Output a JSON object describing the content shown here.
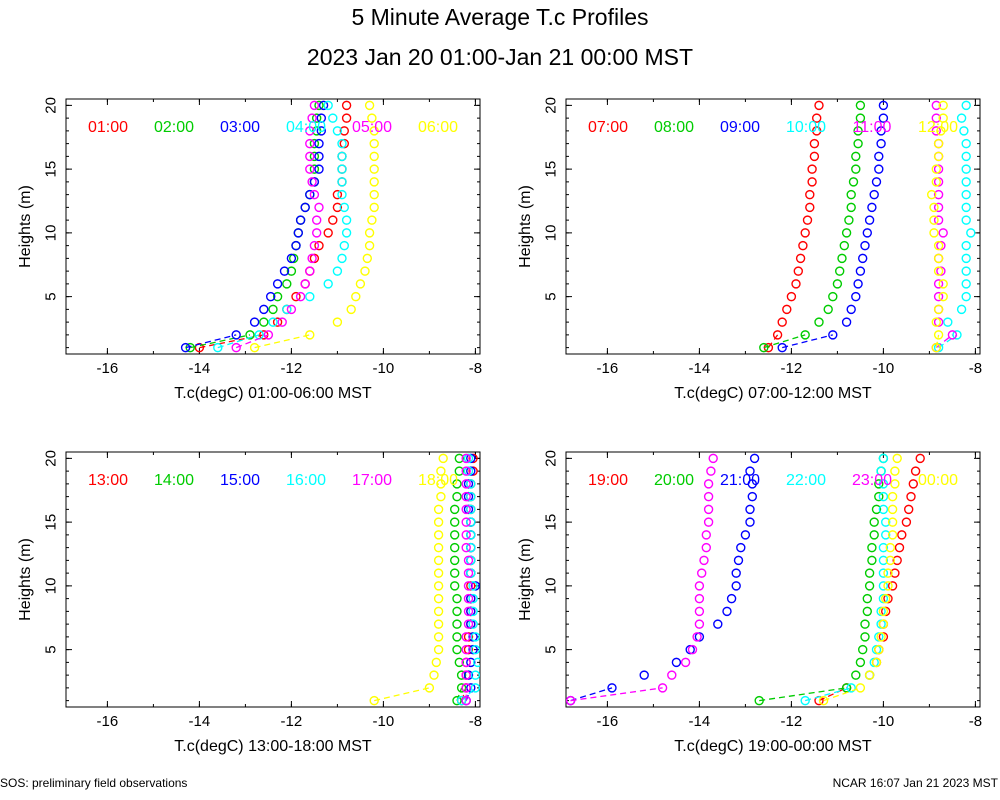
{
  "title": "5 Minute Average T.c Profiles",
  "subtitle": "2023 Jan 20 01:00-Jan 21 00:00 MST",
  "footer_left": "SOS: preliminary field observations",
  "footer_right": "NCAR 16:07 Jan 21 2023 MST",
  "colors": [
    "#ff0000",
    "#00cc00",
    "#0000ff",
    "#00ffff",
    "#ff00ff",
    "#ffff00"
  ],
  "chart_data": [
    {
      "type": "scatter",
      "xlabel": "T.c(degC) 01:00-06:00 MST",
      "ylabel": "Heights (m)",
      "xlim": [
        -16.9,
        -7.9
      ],
      "ylim": [
        0.5,
        20.5
      ],
      "xticks": [
        -16,
        -14,
        -12,
        -10,
        -8
      ],
      "yticks": [
        5,
        10,
        15,
        20
      ],
      "heights": [
        1,
        2,
        3,
        4,
        5,
        6,
        7,
        8,
        9,
        10,
        11,
        12,
        13,
        14,
        15,
        16,
        17,
        18,
        19,
        20
      ],
      "series": [
        {
          "name": "01:00",
          "values": [
            -14.0,
            -12.6,
            -12.3,
            -12.1,
            -11.9,
            -11.7,
            -11.6,
            -11.5,
            -11.4,
            -11.2,
            -11.1,
            -11.0,
            -11.0,
            -10.9,
            -10.9,
            -10.9,
            -10.85,
            -10.85,
            -10.8,
            -10.8
          ]
        },
        {
          "name": "02:00",
          "values": [
            -14.2,
            -12.9,
            -12.6,
            -12.4,
            -12.3,
            -12.1,
            -12.0,
            -11.95,
            -11.9,
            -11.85,
            -11.8,
            -11.7,
            -11.6,
            -11.5,
            -11.5,
            -11.5,
            -11.5,
            -11.45,
            -11.45,
            -11.4
          ]
        },
        {
          "name": "03:00",
          "values": [
            -14.3,
            -13.2,
            -12.8,
            -12.6,
            -12.45,
            -12.3,
            -12.15,
            -12.0,
            -11.9,
            -11.85,
            -11.8,
            -11.7,
            -11.6,
            -11.5,
            -11.4,
            -11.4,
            -11.4,
            -11.35,
            -11.35,
            -11.3
          ]
        },
        {
          "name": "04:00",
          "values": [
            -13.6,
            -12.7,
            -12.4,
            -12.1,
            -11.6,
            -11.2,
            -11.0,
            -10.9,
            -10.85,
            -10.8,
            -10.8,
            -10.85,
            -10.9,
            -10.9,
            -10.9,
            -10.9,
            -10.9,
            -11.0,
            -11.1,
            -11.2
          ]
        },
        {
          "name": "05:00",
          "values": [
            -13.2,
            -12.5,
            -12.2,
            -12.0,
            -11.8,
            -11.7,
            -11.6,
            -11.55,
            -11.5,
            -11.45,
            -11.45,
            -11.4,
            -11.5,
            -11.55,
            -11.6,
            -11.6,
            -11.6,
            -11.6,
            -11.55,
            -11.5
          ]
        },
        {
          "name": "06:00",
          "values": [
            -12.8,
            -11.6,
            -11.0,
            -10.7,
            -10.6,
            -10.5,
            -10.4,
            -10.35,
            -10.3,
            -10.3,
            -10.25,
            -10.2,
            -10.2,
            -10.2,
            -10.2,
            -10.2,
            -10.2,
            -10.2,
            -10.25,
            -10.3
          ]
        }
      ]
    },
    {
      "type": "scatter",
      "xlabel": "T.c(degC) 07:00-12:00 MST",
      "ylabel": "Heights (m)",
      "xlim": [
        -16.9,
        -7.9
      ],
      "ylim": [
        0.5,
        20.5
      ],
      "xticks": [
        -16,
        -14,
        -12,
        -10,
        -8
      ],
      "yticks": [
        5,
        10,
        15,
        20
      ],
      "heights": [
        1,
        2,
        3,
        4,
        5,
        6,
        7,
        8,
        9,
        10,
        11,
        12,
        13,
        14,
        15,
        16,
        17,
        18,
        19,
        20
      ],
      "series": [
        {
          "name": "07:00",
          "values": [
            -12.5,
            -12.3,
            -12.2,
            -12.1,
            -12.0,
            -11.9,
            -11.85,
            -11.8,
            -11.75,
            -11.7,
            -11.65,
            -11.6,
            -11.6,
            -11.55,
            -11.55,
            -11.5,
            -11.5,
            -11.45,
            -11.45,
            -11.4
          ]
        },
        {
          "name": "08:00",
          "values": [
            -12.6,
            -11.7,
            -11.4,
            -11.2,
            -11.1,
            -11.0,
            -10.95,
            -10.9,
            -10.85,
            -10.8,
            -10.75,
            -10.7,
            -10.7,
            -10.65,
            -10.6,
            -10.6,
            -10.55,
            -10.55,
            -10.5,
            -10.5
          ]
        },
        {
          "name": "09:00",
          "values": [
            -12.2,
            -11.1,
            -10.8,
            -10.7,
            -10.6,
            -10.55,
            -10.5,
            -10.45,
            -10.4,
            -10.35,
            -10.3,
            -10.25,
            -10.2,
            -10.15,
            -10.1,
            -10.1,
            -10.05,
            -10.05,
            -10.0,
            -10.0
          ]
        },
        {
          "name": "10:00",
          "values": [
            -8.8,
            -8.4,
            -8.6,
            -8.3,
            -8.2,
            -8.2,
            -8.2,
            -8.2,
            -8.2,
            -8.1,
            -8.2,
            -8.2,
            -8.2,
            -8.2,
            -8.2,
            -8.2,
            -8.2,
            -8.25,
            -8.3,
            -8.2
          ]
        },
        {
          "name": "11:00",
          "values": [
            -8.85,
            -8.5,
            -8.8,
            -8.8,
            -8.8,
            -8.8,
            -8.75,
            -8.8,
            -8.75,
            -8.7,
            -8.8,
            -8.8,
            -8.8,
            -8.8,
            -8.8,
            -8.8,
            -8.8,
            -8.85,
            -8.85,
            -8.85
          ]
        },
        {
          "name": "12:00",
          "values": [
            -8.85,
            -8.8,
            -8.85,
            -8.8,
            -8.7,
            -8.7,
            -8.8,
            -8.8,
            -8.8,
            -8.9,
            -8.9,
            -8.9,
            -8.95,
            -8.85,
            -8.85,
            -8.8,
            -8.8,
            -8.75,
            -8.7,
            -8.7
          ]
        }
      ]
    },
    {
      "type": "scatter",
      "xlabel": "T.c(degC) 13:00-18:00 MST",
      "ylabel": "Heights (m)",
      "xlim": [
        -16.9,
        -7.9
      ],
      "ylim": [
        0.5,
        20.5
      ],
      "xticks": [
        -16,
        -14,
        -12,
        -10,
        -8
      ],
      "yticks": [
        5,
        10,
        15,
        20
      ],
      "heights": [
        1,
        2,
        3,
        4,
        5,
        6,
        7,
        8,
        9,
        10,
        11,
        12,
        13,
        14,
        15,
        16,
        17,
        18,
        19,
        20
      ],
      "series": [
        {
          "name": "13:00",
          "values": [
            -8.3,
            -8.2,
            -8.2,
            -8.2,
            -8.15,
            -8.15,
            -8.1,
            -8.1,
            -8.1,
            -8.1,
            -8.1,
            -8.1,
            -8.1,
            -8.1,
            -8.1,
            -8.1,
            -8.1,
            -8.1,
            -8.05,
            -8.05
          ]
        },
        {
          "name": "14:00",
          "values": [
            -8.4,
            -8.3,
            -8.3,
            -8.35,
            -8.4,
            -8.4,
            -8.4,
            -8.4,
            -8.4,
            -8.45,
            -8.45,
            -8.45,
            -8.45,
            -8.45,
            -8.45,
            -8.45,
            -8.4,
            -8.4,
            -8.35,
            -8.35
          ]
        },
        {
          "name": "15:00",
          "values": [
            -8.2,
            -8.1,
            -8.15,
            -8.1,
            -8.05,
            -8.05,
            -8.1,
            -8.1,
            -8.1,
            -8.0,
            -8.1,
            -8.1,
            -8.1,
            -8.1,
            -8.1,
            -8.15,
            -8.15,
            -8.15,
            -8.1,
            -8.1
          ]
        },
        {
          "name": "16:00",
          "values": [
            -8.3,
            -8.0,
            -8.0,
            -7.95,
            -8.0,
            -8.0,
            -8.05,
            -8.05,
            -8.05,
            -8.05,
            -8.1,
            -8.1,
            -8.1,
            -8.1,
            -8.1,
            -8.1,
            -8.1,
            -8.1,
            -8.15,
            -8.15
          ]
        },
        {
          "name": "17:00",
          "values": [
            -8.2,
            -8.2,
            -8.2,
            -8.2,
            -8.2,
            -8.2,
            -8.15,
            -8.15,
            -8.15,
            -8.15,
            -8.15,
            -8.15,
            -8.2,
            -8.2,
            -8.2,
            -8.2,
            -8.2,
            -8.2,
            -8.2,
            -8.2
          ]
        },
        {
          "name": "18:00",
          "values": [
            -10.2,
            -9.0,
            -8.9,
            -8.85,
            -8.8,
            -8.8,
            -8.8,
            -8.8,
            -8.8,
            -8.8,
            -8.8,
            -8.8,
            -8.8,
            -8.8,
            -8.8,
            -8.8,
            -8.75,
            -8.75,
            -8.75,
            -8.7
          ]
        }
      ]
    },
    {
      "type": "scatter",
      "xlabel": "T.c(degC) 19:00-00:00 MST",
      "ylabel": "Heights (m)",
      "xlim": [
        -16.9,
        -7.9
      ],
      "ylim": [
        0.5,
        20.5
      ],
      "xticks": [
        -16,
        -14,
        -12,
        -10,
        -8
      ],
      "yticks": [
        5,
        10,
        15,
        20
      ],
      "heights": [
        1,
        2,
        3,
        4,
        5,
        6,
        7,
        8,
        9,
        10,
        11,
        12,
        13,
        14,
        15,
        16,
        17,
        18,
        19,
        20
      ],
      "series": [
        {
          "name": "19:00",
          "values": [
            -11.4,
            -10.8,
            -10.3,
            -10.15,
            -10.1,
            -10.0,
            -10.0,
            -9.95,
            -9.9,
            -9.8,
            -9.75,
            -9.7,
            -9.65,
            -9.6,
            -9.5,
            -9.45,
            -9.4,
            -9.35,
            -9.3,
            -9.2
          ]
        },
        {
          "name": "20:00",
          "values": [
            -12.7,
            -10.8,
            -10.6,
            -10.5,
            -10.45,
            -10.4,
            -10.4,
            -10.35,
            -10.35,
            -10.3,
            -10.3,
            -10.25,
            -10.25,
            -10.2,
            -10.2,
            -10.15,
            -10.1,
            -10.1,
            -10.05,
            -10.0
          ]
        },
        {
          "name": "21:00",
          "values": [
            -16.8,
            -15.9,
            -15.2,
            -14.5,
            -14.2,
            -14.0,
            -13.6,
            -13.4,
            -13.3,
            -13.2,
            -13.2,
            -13.15,
            -13.1,
            -13.0,
            -12.9,
            -12.9,
            -12.85,
            -12.85,
            -12.9,
            -12.8
          ]
        },
        {
          "name": "22:00",
          "values": [
            -11.7,
            -10.7,
            -10.3,
            -10.2,
            -10.15,
            -10.1,
            -10.05,
            -10.05,
            -10.0,
            -10.0,
            -10.0,
            -10.0,
            -10.0,
            -9.95,
            -9.95,
            -10.0,
            -10.0,
            -10.0,
            -10.05,
            -10.0
          ]
        },
        {
          "name": "23:00",
          "values": [
            -16.8,
            -14.8,
            -14.6,
            -14.3,
            -14.15,
            -14.05,
            -14.0,
            -14.0,
            -14.0,
            -14.0,
            -13.95,
            -13.9,
            -13.85,
            -13.85,
            -13.8,
            -13.8,
            -13.8,
            -13.8,
            -13.75,
            -13.7
          ]
        },
        {
          "name": "00:00",
          "values": [
            -11.3,
            -10.5,
            -10.3,
            -10.15,
            -10.1,
            -10.05,
            -10.0,
            -10.0,
            -9.95,
            -9.9,
            -9.9,
            -9.85,
            -9.85,
            -9.8,
            -9.8,
            -9.8,
            -9.8,
            -9.75,
            -9.75,
            -9.7
          ]
        }
      ]
    }
  ]
}
